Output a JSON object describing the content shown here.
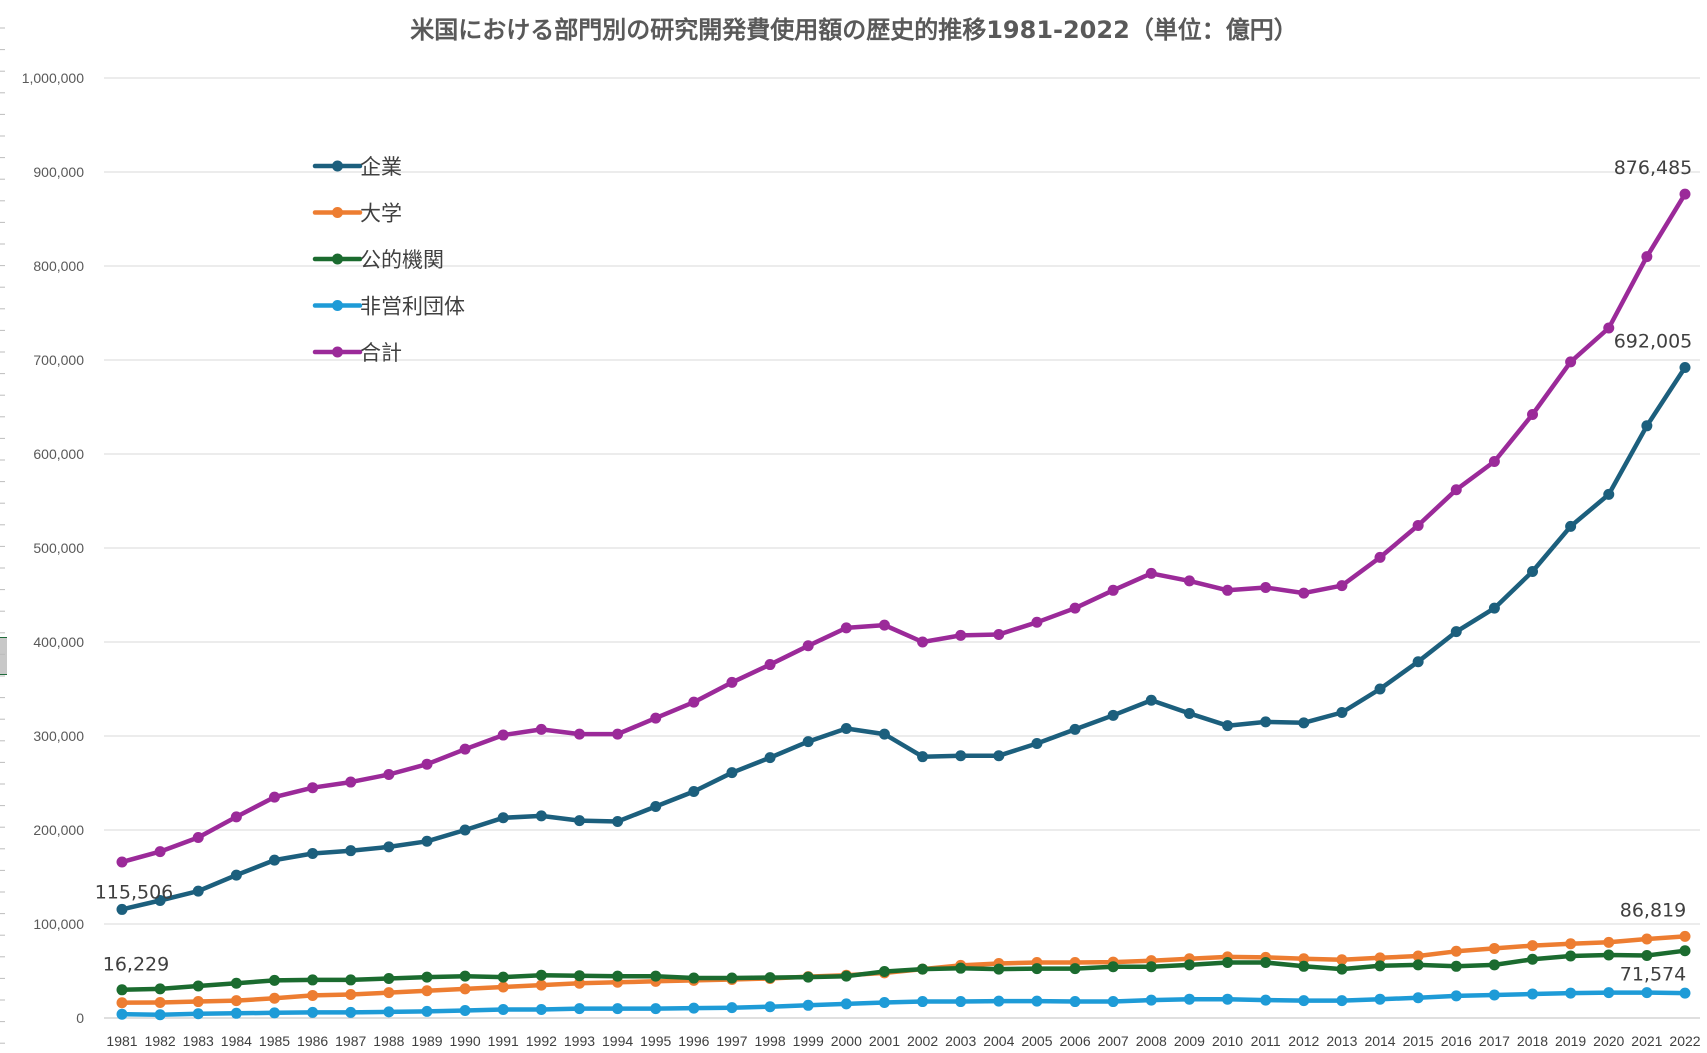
{
  "chart_data": {
    "type": "line",
    "title": "米国における部門別の研究開発費使用額の歴史的推移1981-2022（単位：億円）",
    "xlabel": "",
    "ylabel": "",
    "ylim": [
      0,
      1000000
    ],
    "ytick_step": 100000,
    "yticks": [
      "0",
      "100,000",
      "200,000",
      "300,000",
      "400,000",
      "500,000",
      "600,000",
      "700,000",
      "800,000",
      "900,000",
      "1,000,000"
    ],
    "grid": true,
    "legend_position": "top-left",
    "categories": [
      "1981",
      "1982",
      "1983",
      "1984",
      "1985",
      "1986",
      "1987",
      "1988",
      "1989",
      "1990",
      "1991",
      "1992",
      "1993",
      "1994",
      "1995",
      "1996",
      "1997",
      "1998",
      "1999",
      "2000",
      "2001",
      "2002",
      "2003",
      "2004",
      "2005",
      "2006",
      "2007",
      "2008",
      "2009",
      "2010",
      "2011",
      "2012",
      "2013",
      "2014",
      "2015",
      "2016",
      "2017",
      "2018",
      "2019",
      "2020",
      "2021",
      "2022"
    ],
    "series": [
      {
        "name": "企業",
        "color": "#1c5f7d",
        "values": [
          115506,
          125000,
          135000,
          152000,
          168000,
          175000,
          178000,
          182000,
          188000,
          200000,
          213000,
          215000,
          210000,
          209000,
          225000,
          241000,
          261000,
          277000,
          294000,
          308000,
          302000,
          278000,
          279000,
          279000,
          292000,
          307000,
          322000,
          338000,
          324000,
          311000,
          315000,
          314000,
          325000,
          350000,
          379000,
          411000,
          436000,
          475000,
          523000,
          557000,
          630000,
          692005
        ]
      },
      {
        "name": "大学",
        "color": "#ed7d31",
        "values": [
          16229,
          16500,
          17500,
          18500,
          21000,
          24000,
          25000,
          27000,
          29000,
          31000,
          33000,
          35000,
          37000,
          38000,
          39000,
          40000,
          41000,
          42000,
          44000,
          45500,
          48000,
          52000,
          56000,
          58000,
          59000,
          59000,
          59500,
          61000,
          63000,
          65000,
          64500,
          63000,
          62000,
          64000,
          66000,
          71000,
          74000,
          77000,
          79000,
          80500,
          84000,
          86819
        ]
      },
      {
        "name": "公的機関",
        "color": "#1b6b2f",
        "values": [
          30000,
          31000,
          34000,
          37000,
          40000,
          40500,
          40500,
          42000,
          43500,
          44500,
          43500,
          45500,
          45000,
          44500,
          44500,
          42500,
          42500,
          43000,
          43500,
          44500,
          49500,
          52000,
          53000,
          52000,
          52500,
          52500,
          54500,
          54500,
          56500,
          59000,
          59000,
          55000,
          52000,
          55500,
          56500,
          55000,
          56500,
          62500,
          66000,
          67000,
          66500,
          71574
        ]
      },
      {
        "name": "非営利団体",
        "color": "#1e9bd7",
        "values": [
          4000,
          3500,
          4500,
          5000,
          5500,
          6000,
          6000,
          6500,
          7000,
          8000,
          9000,
          9000,
          10000,
          10000,
          10000,
          10500,
          11000,
          12000,
          13500,
          15000,
          16500,
          17500,
          17500,
          18000,
          18000,
          17500,
          17500,
          19000,
          20000,
          20000,
          19000,
          18500,
          18500,
          20000,
          21500,
          23500,
          24500,
          25500,
          26500,
          27000,
          27000,
          26500
        ]
      },
      {
        "name": "合計",
        "color": "#9b2a99",
        "values": [
          166000,
          177000,
          192000,
          214000,
          235000,
          245000,
          251000,
          259000,
          270000,
          286000,
          301000,
          307000,
          302000,
          302000,
          319000,
          336000,
          357000,
          376000,
          396000,
          415000,
          418000,
          400000,
          407000,
          408000,
          421000,
          436000,
          455000,
          473000,
          465000,
          455000,
          458000,
          452000,
          460000,
          490000,
          524000,
          562000,
          592000,
          642000,
          698000,
          734000,
          810000,
          876485
        ]
      }
    ],
    "data_labels": [
      {
        "series": 0,
        "index": 0,
        "text": "115,506"
      },
      {
        "series": 1,
        "index": 0,
        "text": "16,229"
      },
      {
        "series": 4,
        "index": 41,
        "text": "876,485"
      },
      {
        "series": 0,
        "index": 41,
        "text": "692,005"
      },
      {
        "series": 1,
        "index": 41,
        "text": "86,819"
      },
      {
        "series": 2,
        "index": 41,
        "text": "71,574"
      }
    ]
  }
}
